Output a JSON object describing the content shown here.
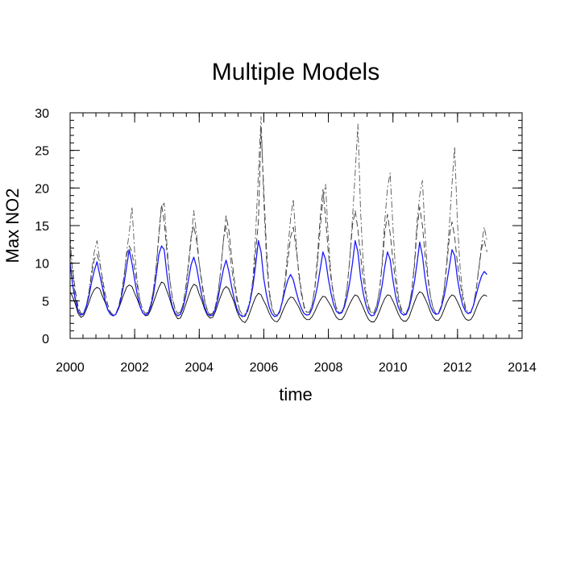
{
  "chart_data": {
    "type": "line",
    "title": "Multiple Models",
    "xlabel": "time",
    "ylabel": "Max NO2",
    "xlim": [
      2000,
      2014
    ],
    "ylim": [
      0,
      30
    ],
    "x_ticks": [
      2000,
      2002,
      2004,
      2006,
      2008,
      2010,
      2012,
      2014
    ],
    "y_ticks": [
      0,
      5,
      10,
      15,
      20,
      25,
      30
    ],
    "grid": false,
    "legend": "none",
    "x_start": 2000.0,
    "x_step": 0.0833,
    "series": [
      {
        "color": "#000000",
        "dash": "solid",
        "values": [
          6.2,
          5.5,
          4.5,
          3.3,
          2.8,
          3.0,
          3.8,
          4.8,
          5.8,
          6.5,
          6.8,
          6.6,
          5.6,
          4.8,
          3.9,
          3.3,
          3.0,
          3.2,
          3.9,
          4.9,
          5.9,
          6.8,
          7.1,
          6.9,
          6.0,
          5.2,
          4.2,
          3.4,
          3.0,
          3.1,
          3.8,
          4.8,
          5.8,
          6.8,
          7.5,
          7.3,
          6.3,
          5.3,
          4.1,
          3.2,
          2.6,
          2.7,
          3.5,
          4.5,
          5.6,
          6.6,
          7.2,
          7.0,
          5.9,
          5.0,
          3.9,
          3.1,
          2.7,
          2.8,
          3.5,
          4.6,
          5.6,
          6.5,
          6.9,
          6.6,
          5.7,
          4.8,
          3.6,
          2.8,
          2.3,
          2.1,
          2.6,
          3.6,
          4.6,
          5.5,
          6.0,
          5.8,
          5.0,
          4.3,
          3.4,
          2.7,
          2.3,
          2.2,
          2.7,
          3.6,
          4.4,
          5.1,
          5.5,
          5.4,
          4.8,
          4.2,
          3.4,
          2.8,
          2.5,
          2.5,
          2.9,
          3.6,
          4.4,
          5.1,
          5.6,
          5.5,
          4.9,
          4.3,
          3.5,
          2.8,
          2.5,
          2.5,
          3.0,
          3.8,
          4.6,
          5.3,
          5.8,
          5.6,
          4.9,
          4.1,
          3.2,
          2.5,
          2.2,
          2.2,
          2.7,
          3.6,
          4.5,
          5.3,
          5.8,
          5.7,
          5.0,
          4.2,
          3.3,
          2.6,
          2.3,
          2.3,
          2.8,
          3.8,
          4.8,
          5.7,
          6.2,
          6.0,
          5.3,
          4.5,
          3.5,
          2.8,
          2.4,
          2.4,
          2.9,
          3.8,
          4.7,
          5.4,
          5.8,
          5.6,
          4.9,
          4.1,
          3.2,
          2.6,
          2.4,
          2.5,
          3.1,
          4.0,
          4.9,
          5.5,
          5.8,
          5.6
        ]
      },
      {
        "color": "#333333",
        "dash": "8,4",
        "values": [
          11.5,
          9.0,
          6.2,
          4.2,
          3.3,
          3.4,
          4.3,
          6.0,
          8.5,
          10.5,
          11.2,
          10.0,
          8.0,
          6.0,
          4.5,
          3.5,
          3.1,
          3.3,
          4.2,
          5.8,
          8.2,
          11.0,
          12.3,
          11.5,
          9.2,
          7.0,
          5.0,
          3.8,
          3.3,
          3.5,
          4.5,
          6.5,
          9.5,
          14.0,
          17.8,
          15.5,
          11.5,
          8.0,
          5.5,
          4.0,
          3.3,
          3.5,
          4.5,
          6.8,
          10.0,
          13.5,
          15.0,
          13.0,
          10.0,
          7.5,
          5.2,
          3.8,
          3.2,
          3.3,
          4.2,
          6.0,
          9.0,
          13.0,
          16.3,
          14.5,
          11.0,
          8.0,
          5.5,
          3.8,
          3.0,
          2.9,
          3.5,
          5.0,
          7.5,
          11.5,
          15.5,
          28.0,
          20.0,
          12.0,
          6.5,
          4.2,
          3.2,
          3.0,
          3.5,
          5.0,
          7.5,
          10.5,
          13.5,
          14.8,
          12.0,
          9.0,
          6.2,
          4.3,
          3.5,
          3.5,
          4.5,
          6.8,
          11.0,
          16.0,
          19.8,
          16.0,
          11.5,
          8.0,
          5.5,
          4.0,
          3.4,
          3.5,
          4.5,
          6.8,
          10.5,
          15.0,
          17.0,
          14.5,
          11.0,
          8.0,
          5.5,
          4.0,
          3.3,
          3.4,
          4.3,
          6.3,
          9.5,
          14.0,
          16.5,
          14.0,
          10.5,
          7.5,
          5.2,
          3.8,
          3.2,
          3.3,
          4.2,
          6.2,
          9.5,
          14.5,
          17.5,
          15.0,
          11.0,
          8.0,
          5.5,
          4.0,
          3.3,
          3.4,
          4.3,
          6.3,
          9.5,
          13.5,
          15.5,
          13.5,
          10.0,
          7.5,
          5.3,
          3.9,
          3.3,
          3.4,
          4.4,
          6.5,
          9.3,
          12.0,
          13.0,
          11.5
        ]
      },
      {
        "color": "#555555",
        "dash": "8,3,2,3",
        "values": [
          13.5,
          8.5,
          5.5,
          3.8,
          3.1,
          3.2,
          4.2,
          6.2,
          9.0,
          11.5,
          13.0,
          10.5,
          7.5,
          5.3,
          4.0,
          3.3,
          3.0,
          3.2,
          4.0,
          5.6,
          8.0,
          11.5,
          14.0,
          17.5,
          11.5,
          7.5,
          5.0,
          3.8,
          3.3,
          3.5,
          4.5,
          6.5,
          9.5,
          13.5,
          17.5,
          18.0,
          12.5,
          8.0,
          5.3,
          3.9,
          3.3,
          3.5,
          4.5,
          6.5,
          9.5,
          13.0,
          17.0,
          14.0,
          10.0,
          7.0,
          5.0,
          3.7,
          3.1,
          3.3,
          4.2,
          6.0,
          9.0,
          13.0,
          15.0,
          12.5,
          9.5,
          7.0,
          5.0,
          3.8,
          3.2,
          3.2,
          3.9,
          5.3,
          8.0,
          14.0,
          22.0,
          29.5,
          18.5,
          10.5,
          6.0,
          4.0,
          3.2,
          3.1,
          3.7,
          5.2,
          8.0,
          12.0,
          16.0,
          18.5,
          13.0,
          8.5,
          5.8,
          4.1,
          3.4,
          3.5,
          4.5,
          6.5,
          10.0,
          14.5,
          18.5,
          20.5,
          13.5,
          8.5,
          5.7,
          4.1,
          3.4,
          3.5,
          4.5,
          6.6,
          10.5,
          16.0,
          22.0,
          28.5,
          17.0,
          10.0,
          6.2,
          4.3,
          3.5,
          3.5,
          4.4,
          6.4,
          10.0,
          15.5,
          20.0,
          22.0,
          15.0,
          9.0,
          5.8,
          4.1,
          3.4,
          3.4,
          4.3,
          6.3,
          10.0,
          15.5,
          19.0,
          21.0,
          14.0,
          8.5,
          5.6,
          4.0,
          3.3,
          3.4,
          4.3,
          6.3,
          10.0,
          15.0,
          20.5,
          25.5,
          15.5,
          9.5,
          6.0,
          4.2,
          3.4,
          3.5,
          4.5,
          6.6,
          9.5,
          12.5,
          14.8,
          13.0
        ]
      },
      {
        "color": "#1a1aff",
        "dash": "solid",
        "values": [
          10.0,
          7.0,
          5.0,
          3.6,
          3.1,
          3.3,
          4.2,
          5.6,
          7.5,
          9.0,
          10.2,
          8.5,
          6.8,
          5.0,
          3.8,
          3.2,
          3.0,
          3.2,
          4.0,
          5.4,
          7.2,
          9.5,
          11.8,
          10.0,
          7.8,
          5.8,
          4.3,
          3.4,
          3.1,
          3.3,
          4.2,
          5.8,
          8.3,
          11.2,
          12.3,
          11.8,
          8.5,
          6.0,
          4.3,
          3.4,
          3.0,
          3.2,
          4.1,
          5.6,
          7.8,
          9.8,
          10.8,
          9.5,
          7.5,
          5.6,
          4.2,
          3.3,
          3.0,
          3.1,
          3.9,
          5.3,
          7.3,
          9.2,
          10.4,
          9.0,
          7.0,
          5.3,
          4.0,
          3.2,
          2.9,
          3.0,
          3.7,
          5.0,
          7.0,
          9.8,
          13.0,
          11.5,
          8.0,
          5.8,
          4.2,
          3.3,
          2.9,
          3.0,
          3.7,
          5.0,
          6.5,
          7.8,
          8.5,
          7.8,
          6.3,
          5.0,
          4.0,
          3.3,
          3.1,
          3.2,
          4.0,
          5.3,
          7.0,
          9.2,
          11.5,
          10.5,
          8.0,
          6.0,
          4.5,
          3.6,
          3.3,
          3.4,
          4.2,
          5.6,
          7.5,
          10.0,
          13.0,
          11.5,
          8.2,
          6.0,
          4.4,
          3.4,
          3.0,
          3.1,
          3.8,
          5.2,
          7.0,
          9.5,
          11.5,
          10.5,
          7.8,
          5.7,
          4.2,
          3.4,
          3.1,
          3.2,
          4.0,
          5.5,
          7.5,
          10.0,
          12.8,
          11.0,
          8.0,
          5.8,
          4.3,
          3.5,
          3.2,
          3.3,
          4.1,
          5.5,
          7.3,
          9.5,
          11.8,
          11.0,
          8.0,
          5.9,
          4.4,
          3.6,
          3.3,
          3.5,
          4.4,
          5.8,
          7.2,
          8.3,
          8.9,
          8.5
        ]
      }
    ]
  }
}
